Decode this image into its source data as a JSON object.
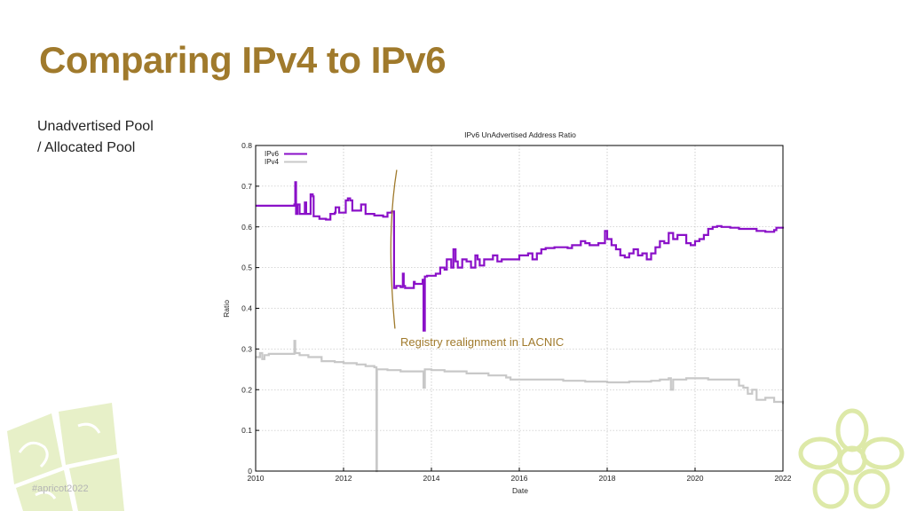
{
  "slide": {
    "title": "Comparing IPv4 to IPv6",
    "subtitle_lines": [
      "Unadvertised Pool",
      "/ Allocated Pool"
    ],
    "hashtag": "#apricot2022",
    "accent_color": "#a07a2c"
  },
  "chart_data": {
    "type": "line",
    "title": "IPv6 UnAdvertised Address Ratio",
    "xlabel": "Date",
    "ylabel": "Ratio",
    "xlim": [
      2010,
      2022
    ],
    "ylim": [
      0,
      0.8
    ],
    "x_ticks": [
      2010,
      2012,
      2014,
      2016,
      2018,
      2020,
      2022
    ],
    "x_tick_labels": [
      "2010",
      "2012",
      "2014",
      "2016",
      "2018",
      "2020",
      "2022"
    ],
    "y_ticks": [
      0,
      0.1,
      0.2,
      0.3,
      0.4,
      0.5,
      0.6,
      0.7,
      0.8
    ],
    "y_tick_labels": [
      "0",
      "0.1",
      "0.2",
      "0.3",
      "0.4",
      "0.5",
      "0.6",
      "0.7",
      "0.8"
    ],
    "grid": true,
    "legend_position": "top-left",
    "series": [
      {
        "name": "IPv6",
        "color": "#8a10c8",
        "x": [
          2010.0,
          2010.8,
          2010.88,
          2010.9,
          2010.92,
          2010.95,
          2011.0,
          2011.1,
          2011.12,
          2011.15,
          2011.2,
          2011.25,
          2011.3,
          2011.32,
          2011.45,
          2011.6,
          2011.7,
          2011.8,
          2011.82,
          2011.9,
          2012.0,
          2012.05,
          2012.1,
          2012.15,
          2012.2,
          2012.4,
          2012.5,
          2012.7,
          2012.9,
          2013.0,
          2013.1,
          2013.15,
          2013.15,
          2013.2,
          2013.3,
          2013.35,
          2013.37,
          2013.4,
          2013.6,
          2013.62,
          2013.7,
          2013.8,
          2013.82,
          2013.85,
          2013.9,
          2014.0,
          2014.1,
          2014.2,
          2014.3,
          2014.35,
          2014.45,
          2014.5,
          2014.55,
          2014.6,
          2014.7,
          2014.8,
          2014.9,
          2015.0,
          2015.05,
          2015.1,
          2015.2,
          2015.4,
          2015.5,
          2015.6,
          2015.8,
          2016.0,
          2016.2,
          2016.3,
          2016.4,
          2016.5,
          2016.6,
          2016.8,
          2017.0,
          2017.1,
          2017.2,
          2017.3,
          2017.4,
          2017.5,
          2017.6,
          2017.8,
          2017.95,
          2018.0,
          2018.1,
          2018.2,
          2018.3,
          2018.4,
          2018.5,
          2018.6,
          2018.7,
          2018.8,
          2018.9,
          2019.0,
          2019.1,
          2019.2,
          2019.3,
          2019.4,
          2019.5,
          2019.6,
          2019.8,
          2019.9,
          2020.0,
          2020.1,
          2020.2,
          2020.3,
          2020.4,
          2020.5,
          2020.6,
          2020.8,
          2021.0,
          2021.2,
          2021.4,
          2021.6,
          2021.8,
          2021.85,
          2022.0
        ],
        "values": [
          0.652,
          0.652,
          0.655,
          0.71,
          0.632,
          0.655,
          0.632,
          0.632,
          0.66,
          0.632,
          0.632,
          0.68,
          0.675,
          0.626,
          0.62,
          0.618,
          0.632,
          0.635,
          0.648,
          0.635,
          0.635,
          0.665,
          0.67,
          0.665,
          0.64,
          0.655,
          0.632,
          0.628,
          0.625,
          0.635,
          0.638,
          0.618,
          0.45,
          0.455,
          0.452,
          0.485,
          0.455,
          0.45,
          0.465,
          0.46,
          0.46,
          0.47,
          0.345,
          0.478,
          0.48,
          0.48,
          0.485,
          0.5,
          0.495,
          0.52,
          0.5,
          0.545,
          0.515,
          0.5,
          0.52,
          0.515,
          0.5,
          0.53,
          0.52,
          0.505,
          0.52,
          0.53,
          0.515,
          0.52,
          0.52,
          0.53,
          0.535,
          0.52,
          0.535,
          0.545,
          0.548,
          0.55,
          0.55,
          0.548,
          0.555,
          0.555,
          0.565,
          0.56,
          0.555,
          0.56,
          0.59,
          0.57,
          0.555,
          0.545,
          0.53,
          0.525,
          0.535,
          0.545,
          0.53,
          0.535,
          0.52,
          0.535,
          0.55,
          0.565,
          0.56,
          0.585,
          0.57,
          0.58,
          0.56,
          0.555,
          0.565,
          0.57,
          0.58,
          0.595,
          0.6,
          0.602,
          0.6,
          0.598,
          0.595,
          0.595,
          0.59,
          0.588,
          0.592,
          0.598,
          0.596
        ]
      },
      {
        "name": "IPv4",
        "color": "#c8c8c8",
        "x": [
          2010.0,
          2010.1,
          2010.15,
          2010.2,
          2010.3,
          2010.5,
          2010.8,
          2010.88,
          2010.9,
          2011.0,
          2011.2,
          2011.5,
          2011.8,
          2012.0,
          2012.3,
          2012.5,
          2012.7,
          2012.75,
          2012.75,
          2012.76,
          2012.9,
          2013.0,
          2013.3,
          2013.5,
          2013.8,
          2013.82,
          2013.85,
          2014.0,
          2014.3,
          2014.5,
          2014.8,
          2015.0,
          2015.3,
          2015.5,
          2015.7,
          2015.8,
          2016.0,
          2016.5,
          2017.0,
          2017.5,
          2018.0,
          2018.5,
          2019.0,
          2019.2,
          2019.4,
          2019.45,
          2019.5,
          2019.8,
          2020.0,
          2020.3,
          2020.5,
          2020.8,
          2021.0,
          2021.1,
          2021.2,
          2021.3,
          2021.4,
          2021.6,
          2021.8,
          2022.0
        ],
        "values": [
          0.28,
          0.29,
          0.275,
          0.285,
          0.288,
          0.288,
          0.288,
          0.32,
          0.29,
          0.285,
          0.28,
          0.27,
          0.268,
          0.265,
          0.262,
          0.258,
          0.255,
          0.25,
          0.0,
          0.25,
          0.25,
          0.248,
          0.245,
          0.245,
          0.245,
          0.205,
          0.25,
          0.248,
          0.245,
          0.245,
          0.24,
          0.24,
          0.235,
          0.235,
          0.23,
          0.225,
          0.225,
          0.225,
          0.222,
          0.22,
          0.218,
          0.22,
          0.222,
          0.225,
          0.228,
          0.2,
          0.225,
          0.228,
          0.228,
          0.225,
          0.225,
          0.225,
          0.21,
          0.205,
          0.19,
          0.2,
          0.175,
          0.18,
          0.17,
          0.165
        ]
      }
    ],
    "annotation": {
      "text": "Registry realignment in LACNIC",
      "x": 2013.15,
      "y_from": 0.35,
      "y_to": 0.74
    }
  }
}
